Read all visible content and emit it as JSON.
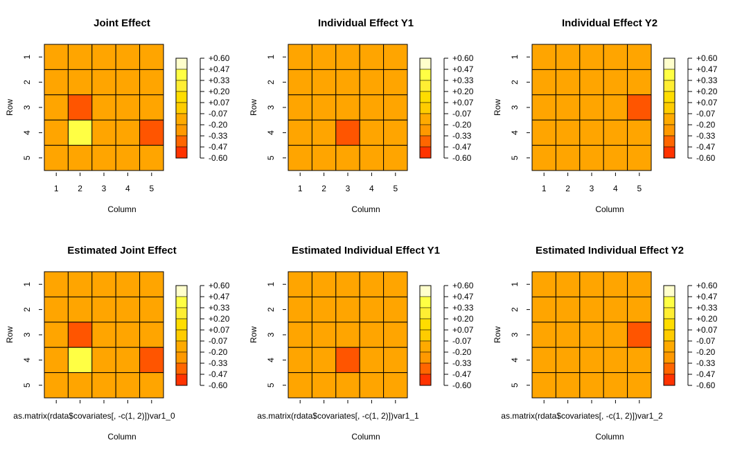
{
  "colors": {
    "scale": [
      "#FF0000",
      "#FF3300",
      "#FF6600",
      "#FF9900",
      "#FFAA00",
      "#FFCC00",
      "#FFDD00",
      "#FFEE33",
      "#FFFF44",
      "#FFFFCC"
    ],
    "cell_default": "#FFA500",
    "cell_low": "#FF5500",
    "cell_high": "#FFFF44"
  },
  "legend_labels": [
    "+0.60",
    "+0.47",
    "+0.33",
    "+0.20",
    "+0.07",
    "-0.07",
    "-0.20",
    "-0.33",
    "-0.47",
    "-0.60"
  ],
  "chart_data": [
    {
      "type": "heatmap",
      "title": "Joint Effect",
      "xlabel": "Column",
      "ylabel": "Row",
      "x_ticks": [
        "1",
        "2",
        "3",
        "4",
        "5"
      ],
      "y_ticks": [
        "1",
        "2",
        "3",
        "4",
        "5"
      ],
      "sublabel": "",
      "cells": [
        [
          0,
          0,
          0,
          0,
          0
        ],
        [
          0,
          0,
          0,
          0,
          0
        ],
        [
          0,
          -1,
          0,
          0,
          0
        ],
        [
          0,
          1,
          0,
          0,
          -1
        ],
        [
          0,
          0,
          0,
          0,
          0
        ]
      ]
    },
    {
      "type": "heatmap",
      "title": "Individual Effect Y1",
      "xlabel": "Column",
      "ylabel": "Row",
      "x_ticks": [
        "1",
        "2",
        "3",
        "4",
        "5"
      ],
      "y_ticks": [
        "1",
        "2",
        "3",
        "4",
        "5"
      ],
      "sublabel": "",
      "cells": [
        [
          0,
          0,
          0,
          0,
          0
        ],
        [
          0,
          0,
          0,
          0,
          0
        ],
        [
          0,
          0,
          0,
          0,
          0
        ],
        [
          0,
          0,
          -1,
          0,
          0
        ],
        [
          0,
          0,
          0,
          0,
          0
        ]
      ]
    },
    {
      "type": "heatmap",
      "title": "Individual Effect Y2",
      "xlabel": "Column",
      "ylabel": "Row",
      "x_ticks": [
        "1",
        "2",
        "3",
        "4",
        "5"
      ],
      "y_ticks": [
        "1",
        "2",
        "3",
        "4",
        "5"
      ],
      "sublabel": "",
      "cells": [
        [
          0,
          0,
          0,
          0,
          0
        ],
        [
          0,
          0,
          0,
          0,
          0
        ],
        [
          0,
          0,
          0,
          0,
          -1
        ],
        [
          0,
          0,
          0,
          0,
          0
        ],
        [
          0,
          0,
          0,
          0,
          0
        ]
      ]
    },
    {
      "type": "heatmap",
      "title": "Estimated Joint Effect",
      "xlabel": "Column",
      "ylabel": "Row",
      "x_ticks": [],
      "y_ticks": [
        "1",
        "2",
        "3",
        "4",
        "5"
      ],
      "sublabel": "as.matrix(rdata$covariates[, -c(1, 2)])var1_0",
      "cells": [
        [
          0,
          0,
          0,
          0,
          0
        ],
        [
          0,
          0,
          0,
          0,
          0
        ],
        [
          0,
          -1,
          0,
          0,
          0
        ],
        [
          0,
          1,
          0,
          0,
          -1
        ],
        [
          0,
          0,
          0,
          0,
          0
        ]
      ]
    },
    {
      "type": "heatmap",
      "title": "Estimated Individual Effect Y1",
      "xlabel": "Column",
      "ylabel": "Row",
      "x_ticks": [],
      "y_ticks": [
        "1",
        "2",
        "3",
        "4",
        "5"
      ],
      "sublabel": "as.matrix(rdata$covariates[, -c(1, 2)])var1_1",
      "cells": [
        [
          0,
          0,
          0,
          0,
          0
        ],
        [
          0,
          0,
          0,
          0,
          0
        ],
        [
          0,
          0,
          0,
          0,
          0
        ],
        [
          0,
          0,
          -1,
          0,
          0
        ],
        [
          0,
          0,
          0,
          0,
          0
        ]
      ]
    },
    {
      "type": "heatmap",
      "title": "Estimated Individual Effect Y2",
      "xlabel": "Column",
      "ylabel": "Row",
      "x_ticks": [],
      "y_ticks": [
        "1",
        "2",
        "3",
        "4",
        "5"
      ],
      "sublabel": "as.matrix(rdata$covariates[, -c(1, 2)])var1_2",
      "cells": [
        [
          0,
          0,
          0,
          0,
          0
        ],
        [
          0,
          0,
          0,
          0,
          0
        ],
        [
          0,
          0,
          0,
          0,
          -1
        ],
        [
          0,
          0,
          0,
          0,
          0
        ],
        [
          0,
          0,
          0,
          0,
          0
        ]
      ]
    }
  ]
}
